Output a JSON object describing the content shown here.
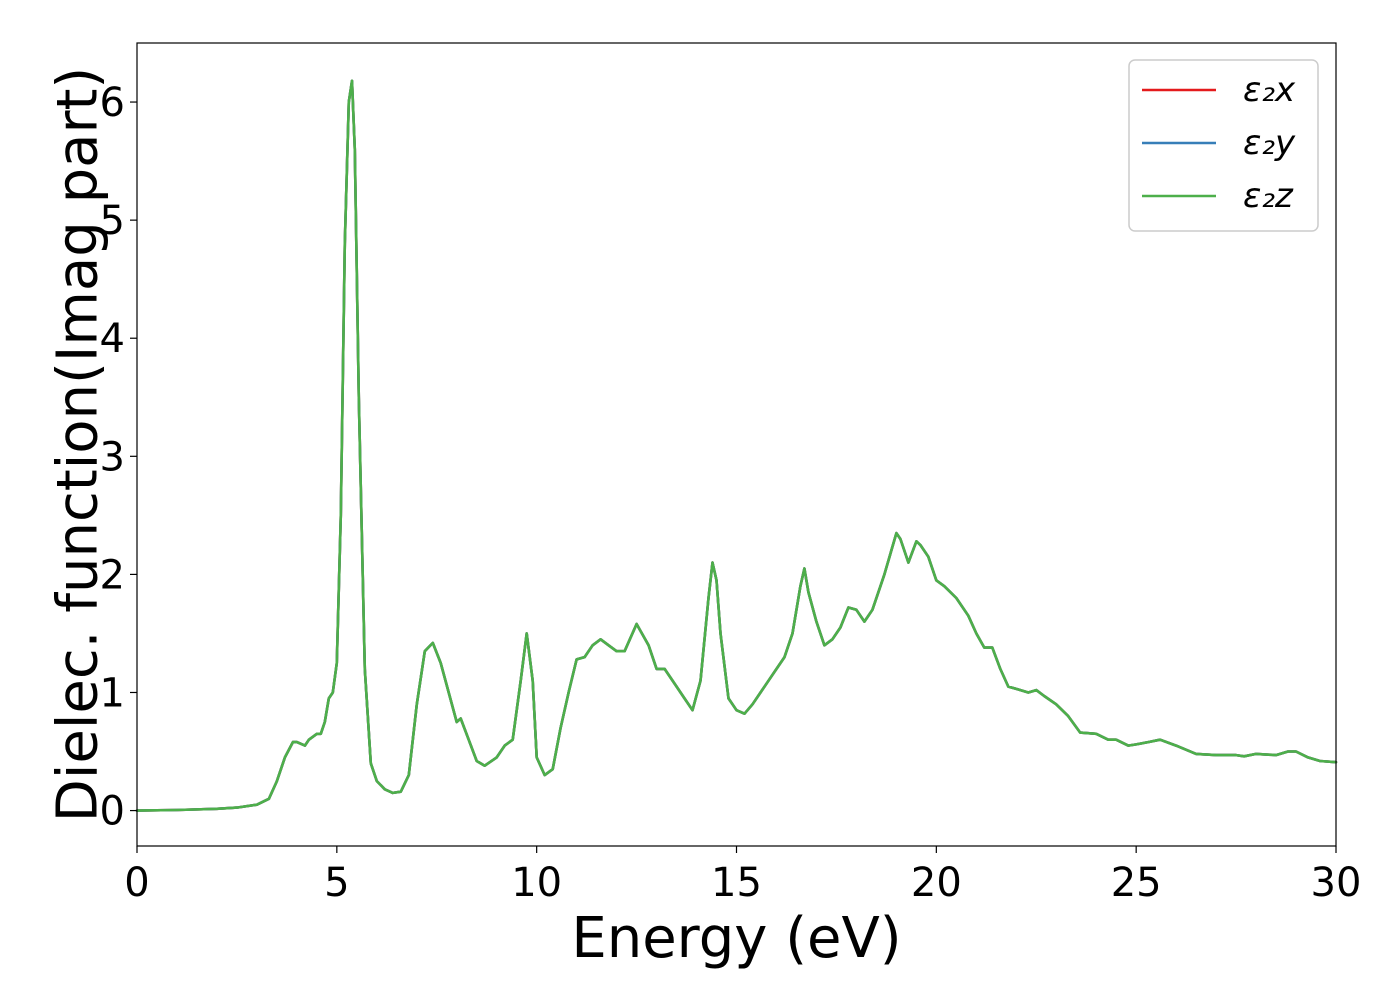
{
  "chart_data": {
    "type": "line",
    "title": "",
    "xlabel": "Energy (eV)",
    "ylabel": "Dielec. function(Imag part)",
    "xlim": [
      0,
      30
    ],
    "ylim": [
      -0.3,
      6.5
    ],
    "xticks": [
      "0",
      "5",
      "10",
      "15",
      "20",
      "25",
      "30"
    ],
    "yticks": [
      "0",
      "1",
      "2",
      "3",
      "4",
      "5",
      "6"
    ],
    "grid": false,
    "legend_position": "top-right",
    "x": [
      0,
      1,
      2,
      2.5,
      3.0,
      3.3,
      3.5,
      3.7,
      3.9,
      4.0,
      4.2,
      4.3,
      4.5,
      4.6,
      4.7,
      4.8,
      4.9,
      5.0,
      5.1,
      5.2,
      5.3,
      5.38,
      5.45,
      5.55,
      5.7,
      5.85,
      6.0,
      6.2,
      6.4,
      6.6,
      6.8,
      7.0,
      7.2,
      7.4,
      7.6,
      7.8,
      8.0,
      8.1,
      8.3,
      8.5,
      8.7,
      9.0,
      9.2,
      9.4,
      9.6,
      9.75,
      9.9,
      10.0,
      10.2,
      10.4,
      10.6,
      10.8,
      11.0,
      11.2,
      11.4,
      11.6,
      11.8,
      12.0,
      12.2,
      12.5,
      12.8,
      13.0,
      13.2,
      13.5,
      13.7,
      13.9,
      14.1,
      14.3,
      14.4,
      14.5,
      14.6,
      14.8,
      15.0,
      15.2,
      15.4,
      15.6,
      15.8,
      16.0,
      16.2,
      16.4,
      16.6,
      16.7,
      16.8,
      17.0,
      17.2,
      17.4,
      17.6,
      17.8,
      18.0,
      18.2,
      18.4,
      18.7,
      19.0,
      19.1,
      19.3,
      19.5,
      19.6,
      19.8,
      20.0,
      20.2,
      20.5,
      20.8,
      21.0,
      21.2,
      21.4,
      21.6,
      21.8,
      22.0,
      22.3,
      22.5,
      22.7,
      23.0,
      23.3,
      23.6,
      24.0,
      24.3,
      24.5,
      24.8,
      25.0,
      25.3,
      25.6,
      26.0,
      26.5,
      27.0,
      27.5,
      27.7,
      28.0,
      28.5,
      28.8,
      29.0,
      29.3,
      29.6,
      30.0
    ],
    "series": [
      {
        "name": "ε₂x",
        "color": "#e41a1c",
        "values": [
          0.0,
          0.005,
          0.015,
          0.025,
          0.05,
          0.1,
          0.25,
          0.45,
          0.58,
          0.58,
          0.55,
          0.6,
          0.65,
          0.65,
          0.75,
          0.95,
          1.0,
          1.25,
          2.5,
          4.8,
          6.0,
          6.18,
          5.6,
          3.5,
          1.2,
          0.4,
          0.25,
          0.18,
          0.15,
          0.16,
          0.3,
          0.9,
          1.35,
          1.42,
          1.25,
          1.0,
          0.75,
          0.78,
          0.6,
          0.42,
          0.38,
          0.45,
          0.55,
          0.6,
          1.1,
          1.5,
          1.1,
          0.45,
          0.3,
          0.35,
          0.7,
          1.0,
          1.28,
          1.3,
          1.4,
          1.45,
          1.4,
          1.35,
          1.35,
          1.58,
          1.4,
          1.2,
          1.2,
          1.05,
          0.95,
          0.85,
          1.1,
          1.8,
          2.1,
          1.95,
          1.5,
          0.95,
          0.85,
          0.82,
          0.9,
          1.0,
          1.1,
          1.2,
          1.3,
          1.5,
          1.9,
          2.05,
          1.85,
          1.6,
          1.4,
          1.45,
          1.55,
          1.72,
          1.7,
          1.6,
          1.7,
          2.0,
          2.35,
          2.3,
          2.1,
          2.28,
          2.25,
          2.15,
          1.95,
          1.9,
          1.8,
          1.65,
          1.5,
          1.38,
          1.38,
          1.2,
          1.05,
          1.03,
          1.0,
          1.02,
          0.97,
          0.9,
          0.8,
          0.66,
          0.65,
          0.6,
          0.6,
          0.55,
          0.56,
          0.58,
          0.6,
          0.55,
          0.48,
          0.47,
          0.47,
          0.46,
          0.48,
          0.47,
          0.5,
          0.5,
          0.45,
          0.42,
          0.41
        ]
      },
      {
        "name": "ε₂y",
        "color": "#377eb8",
        "values": [
          0.0,
          0.005,
          0.015,
          0.025,
          0.05,
          0.1,
          0.25,
          0.45,
          0.58,
          0.58,
          0.55,
          0.6,
          0.65,
          0.65,
          0.75,
          0.95,
          1.0,
          1.25,
          2.5,
          4.8,
          6.0,
          6.18,
          5.6,
          3.5,
          1.2,
          0.4,
          0.25,
          0.18,
          0.15,
          0.16,
          0.3,
          0.9,
          1.35,
          1.42,
          1.25,
          1.0,
          0.75,
          0.78,
          0.6,
          0.42,
          0.38,
          0.45,
          0.55,
          0.6,
          1.1,
          1.5,
          1.1,
          0.45,
          0.3,
          0.35,
          0.7,
          1.0,
          1.28,
          1.3,
          1.4,
          1.45,
          1.4,
          1.35,
          1.35,
          1.58,
          1.4,
          1.2,
          1.2,
          1.05,
          0.95,
          0.85,
          1.1,
          1.8,
          2.1,
          1.95,
          1.5,
          0.95,
          0.85,
          0.82,
          0.9,
          1.0,
          1.1,
          1.2,
          1.3,
          1.5,
          1.9,
          2.05,
          1.85,
          1.6,
          1.4,
          1.45,
          1.55,
          1.72,
          1.7,
          1.6,
          1.7,
          2.0,
          2.35,
          2.3,
          2.1,
          2.28,
          2.25,
          2.15,
          1.95,
          1.9,
          1.8,
          1.65,
          1.5,
          1.38,
          1.38,
          1.2,
          1.05,
          1.03,
          1.0,
          1.02,
          0.97,
          0.9,
          0.8,
          0.66,
          0.65,
          0.6,
          0.6,
          0.55,
          0.56,
          0.58,
          0.6,
          0.55,
          0.48,
          0.47,
          0.47,
          0.46,
          0.48,
          0.47,
          0.5,
          0.5,
          0.45,
          0.42,
          0.41
        ]
      },
      {
        "name": "ε₂z",
        "color": "#4daf4a",
        "values": [
          0.0,
          0.005,
          0.015,
          0.025,
          0.05,
          0.1,
          0.25,
          0.45,
          0.58,
          0.58,
          0.55,
          0.6,
          0.65,
          0.65,
          0.75,
          0.95,
          1.0,
          1.25,
          2.5,
          4.8,
          6.0,
          6.18,
          5.6,
          3.5,
          1.2,
          0.4,
          0.25,
          0.18,
          0.15,
          0.16,
          0.3,
          0.9,
          1.35,
          1.42,
          1.25,
          1.0,
          0.75,
          0.78,
          0.6,
          0.42,
          0.38,
          0.45,
          0.55,
          0.6,
          1.1,
          1.5,
          1.1,
          0.45,
          0.3,
          0.35,
          0.7,
          1.0,
          1.28,
          1.3,
          1.4,
          1.45,
          1.4,
          1.35,
          1.35,
          1.58,
          1.4,
          1.2,
          1.2,
          1.05,
          0.95,
          0.85,
          1.1,
          1.8,
          2.1,
          1.95,
          1.5,
          0.95,
          0.85,
          0.82,
          0.9,
          1.0,
          1.1,
          1.2,
          1.3,
          1.5,
          1.9,
          2.05,
          1.85,
          1.6,
          1.4,
          1.45,
          1.55,
          1.72,
          1.7,
          1.6,
          1.7,
          2.0,
          2.35,
          2.3,
          2.1,
          2.28,
          2.25,
          2.15,
          1.95,
          1.9,
          1.8,
          1.65,
          1.5,
          1.38,
          1.38,
          1.2,
          1.05,
          1.03,
          1.0,
          1.02,
          0.97,
          0.9,
          0.8,
          0.66,
          0.65,
          0.6,
          0.6,
          0.55,
          0.56,
          0.58,
          0.6,
          0.55,
          0.48,
          0.47,
          0.47,
          0.46,
          0.48,
          0.47,
          0.5,
          0.5,
          0.45,
          0.42,
          0.41
        ]
      }
    ]
  }
}
